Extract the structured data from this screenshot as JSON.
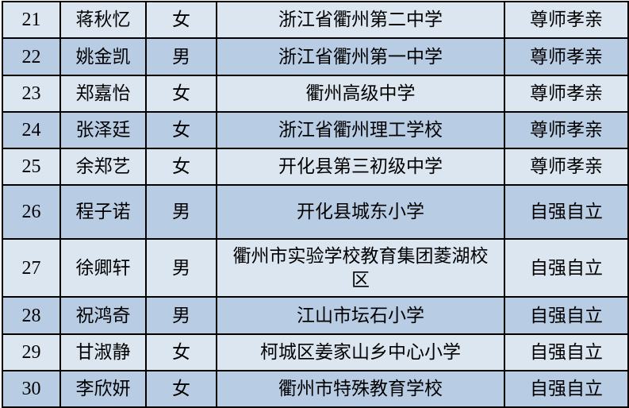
{
  "colors": {
    "row_light": "#dce6f1",
    "row_dark": "#b8cce4",
    "border": "#000000"
  },
  "rows": [
    {
      "no": "21",
      "name": "蒋秋忆",
      "gender": "女",
      "school": "浙江省衢州第二中学",
      "award": "尊师孝亲"
    },
    {
      "no": "22",
      "name": "姚金凯",
      "gender": "男",
      "school": "浙江省衢州第一中学",
      "award": "尊师孝亲"
    },
    {
      "no": "23",
      "name": "郑嘉怡",
      "gender": "女",
      "school": "衢州高级中学",
      "award": "尊师孝亲"
    },
    {
      "no": "24",
      "name": "张泽廷",
      "gender": "女",
      "school": "浙江省衢州理工学校",
      "award": "尊师孝亲"
    },
    {
      "no": "25",
      "name": "余郑艺",
      "gender": "女",
      "school": "开化县第三初级中学",
      "award": "尊师孝亲"
    },
    {
      "no": "26",
      "name": "程子诺",
      "gender": "男",
      "school": "开化县城东小学",
      "award": "自强自立"
    },
    {
      "no": "27",
      "name": "徐卿轩",
      "gender": "男",
      "school": "衢州市实验学校教育集团菱湖校区",
      "award": "自强自立"
    },
    {
      "no": "28",
      "name": "祝鸿奇",
      "gender": "男",
      "school": "江山市坛石小学",
      "award": "自强自立"
    },
    {
      "no": "29",
      "name": "甘淑静",
      "gender": "女",
      "school": "柯城区姜家山乡中心小学",
      "award": "自强自立"
    },
    {
      "no": "30",
      "name": "李欣妍",
      "gender": "女",
      "school": "衢州市特殊教育学校",
      "award": "自强自立"
    }
  ]
}
